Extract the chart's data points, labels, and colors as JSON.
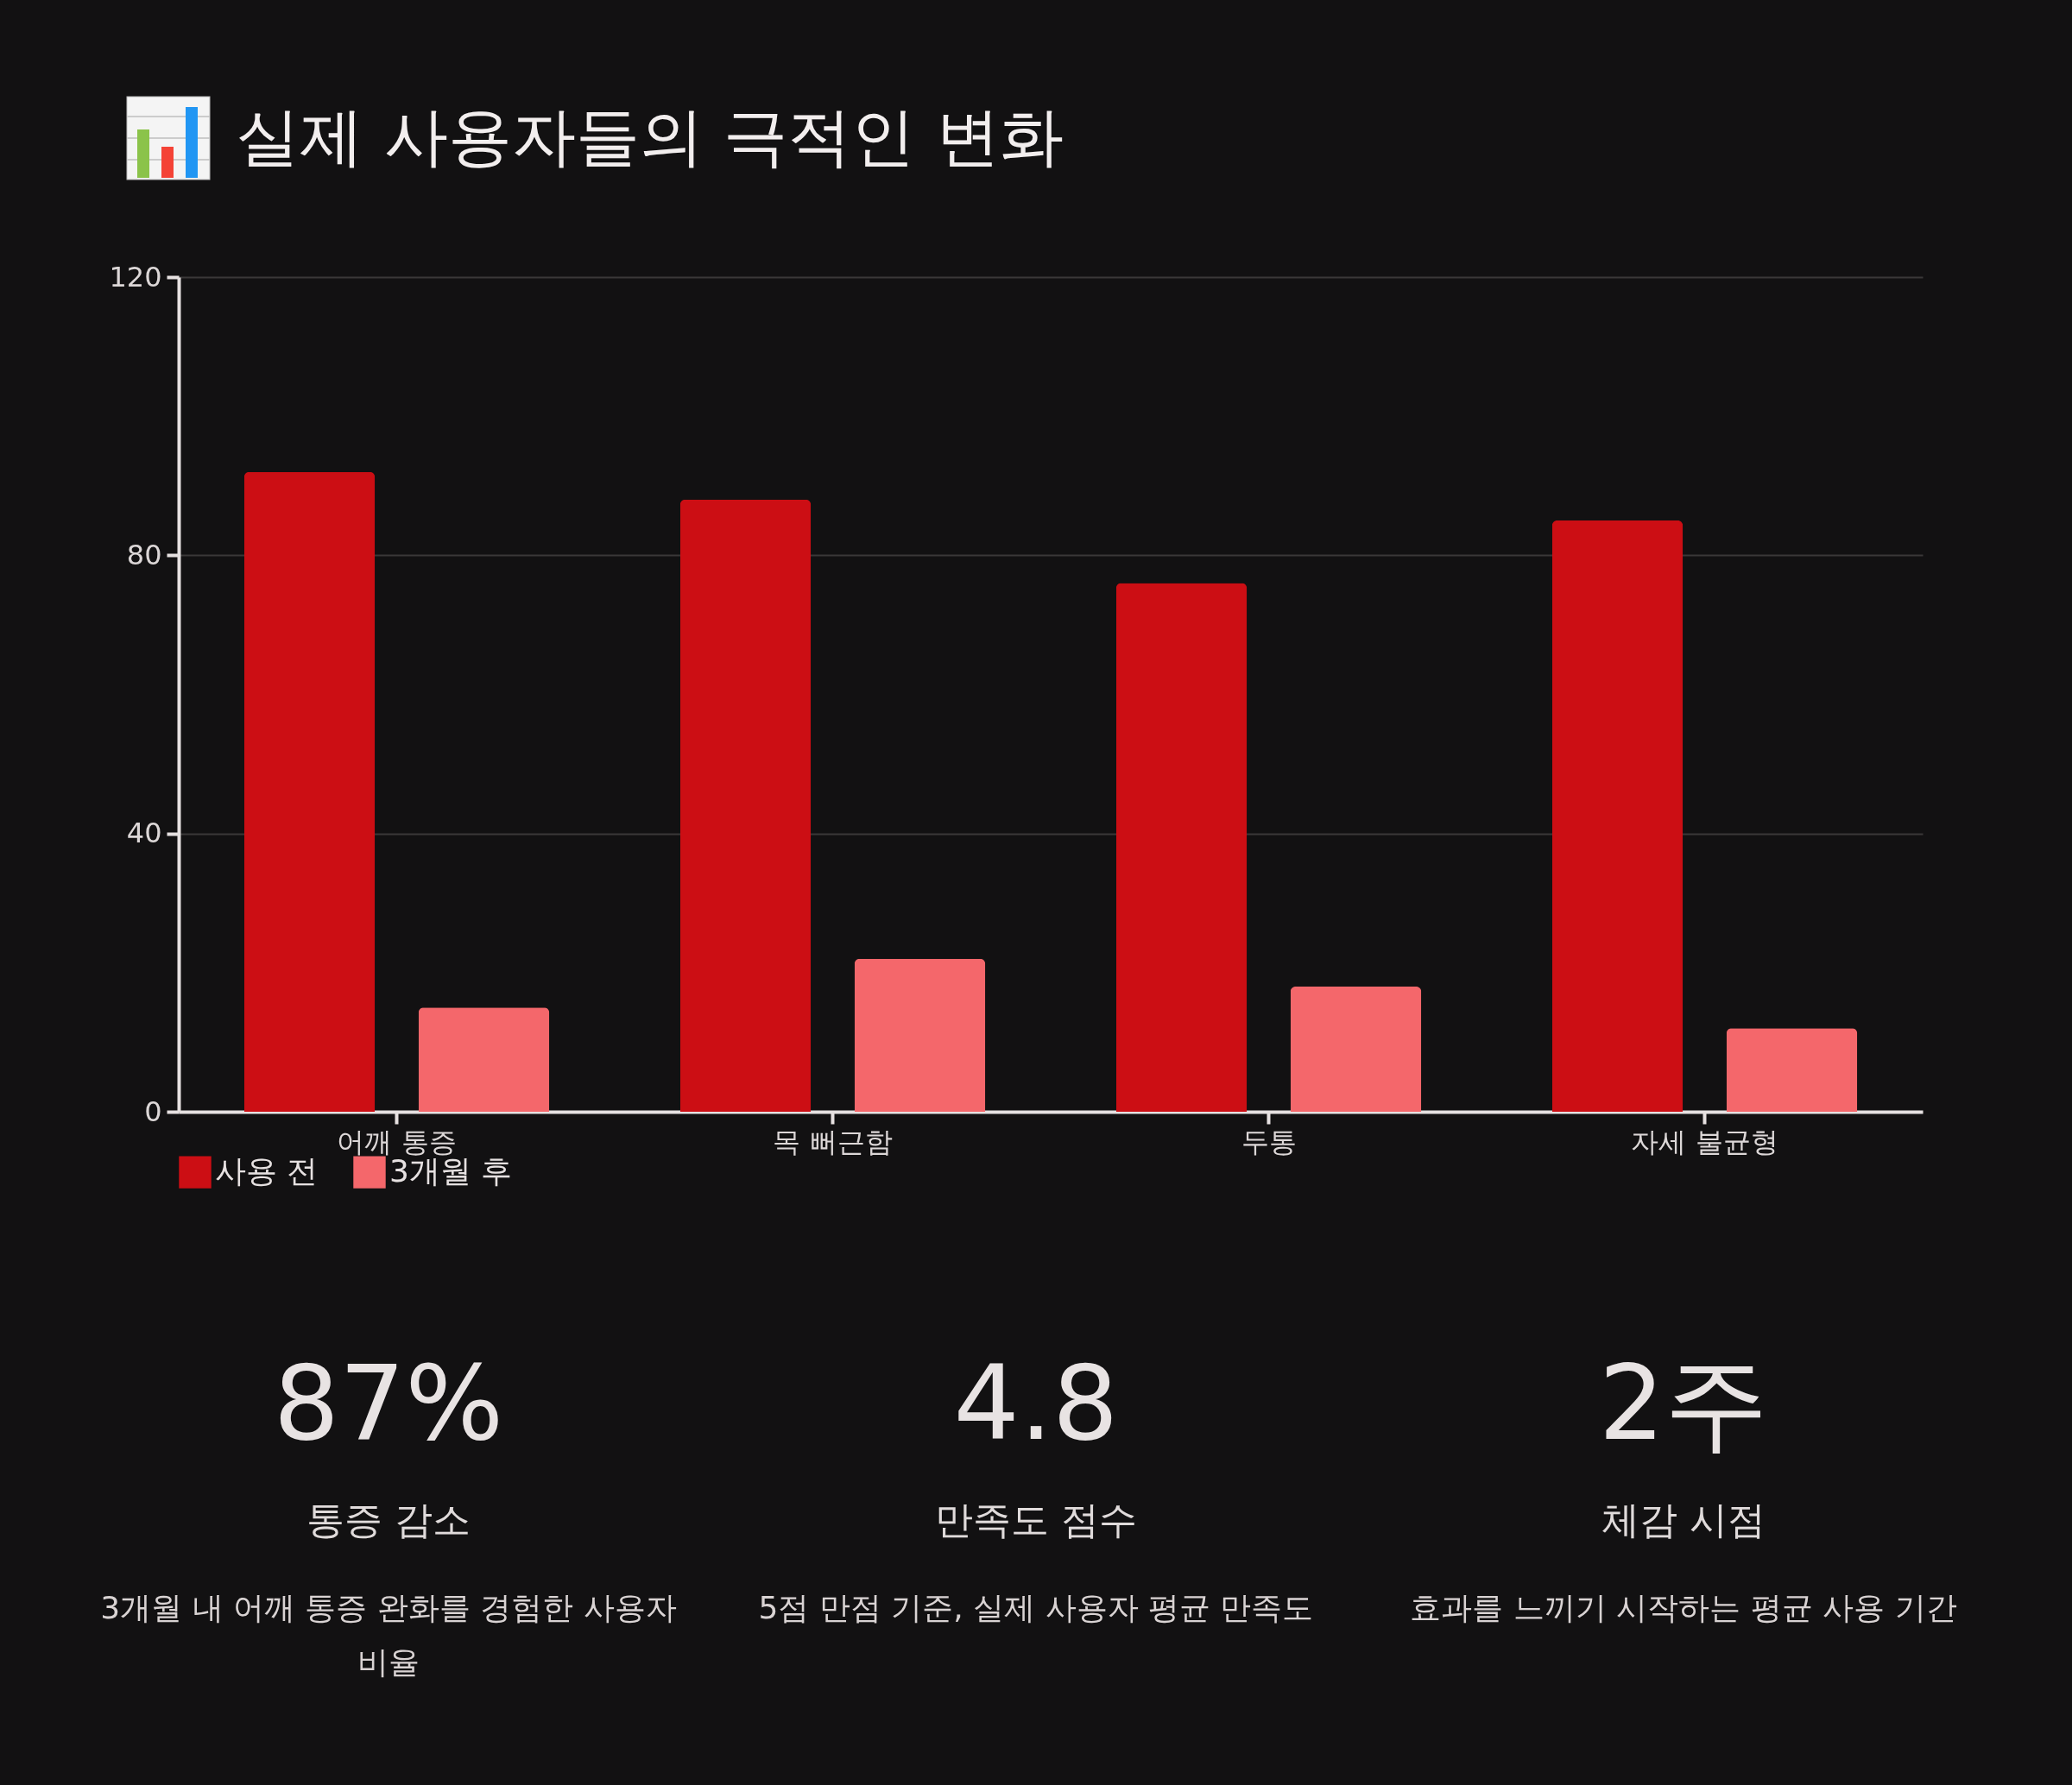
{
  "chart_data": [
    {
      "type": "bar",
      "title": "실제 사용자들의 극적인 변화",
      "categories": [
        "어깨 통증",
        "목 뻐근함",
        "두통",
        "자세 불균형"
      ],
      "series": [
        {
          "name": "사용 전",
          "color": "#cc0e14",
          "values": [
            92,
            88,
            76,
            85
          ]
        },
        {
          "name": "3개월 후",
          "color": "#f4676b",
          "values": [
            15,
            22,
            18,
            12
          ]
        }
      ],
      "ylim": [
        0,
        120
      ],
      "yticks": [
        0,
        40,
        80,
        120
      ],
      "grid": "y",
      "legend": "bottom"
    },
    {
      "type": "other",
      "annotations": [
        "87%",
        "통증 감소",
        "3개월 내 어깨 통증 완화를 경험한 사용자 비율",
        "4.8",
        "만족도 점수",
        "5점 만점 기준, 실제 사용자 평균 만족도",
        "2주",
        "체감 시점",
        "효과를 느끼기 시작하는 평균 사용 기간"
      ]
    }
  ]
}
